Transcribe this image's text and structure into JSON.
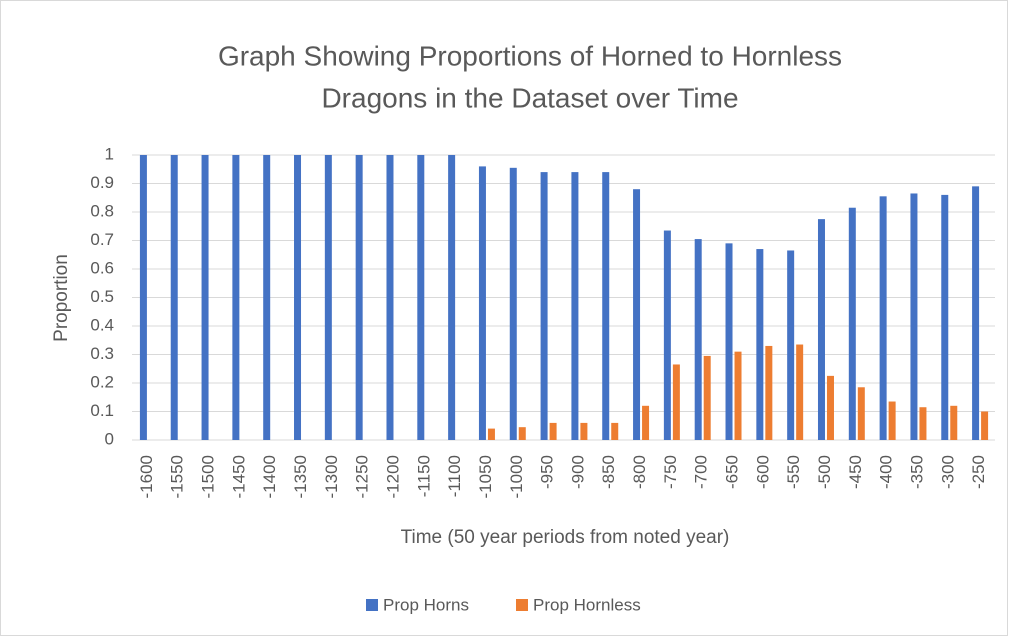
{
  "chart_data": {
    "type": "bar",
    "title": [
      "Graph Showing Proportions of Horned to Hornless",
      "Dragons in the Dataset over Time"
    ],
    "x_label": "Time (50 year periods from noted year)",
    "y_label": "Proportion",
    "categories": [
      "-1600",
      "-1550",
      "-1500",
      "-1450",
      "-1400",
      "-1350",
      "-1300",
      "-1250",
      "-1200",
      "-1150",
      "-1100",
      "-1050",
      "-1000",
      "-950",
      "-900",
      "-850",
      "-800",
      "-750",
      "-700",
      "-650",
      "-600",
      "-550",
      "-500",
      "-450",
      "-400",
      "-350",
      "-300",
      "-250"
    ],
    "series": [
      {
        "name": "Prop Horns",
        "color": "#4472c4",
        "values": [
          1,
          1,
          1,
          1,
          1,
          1,
          1,
          1,
          1,
          1,
          1,
          0.96,
          0.955,
          0.94,
          0.94,
          0.94,
          0.88,
          0.735,
          0.705,
          0.69,
          0.67,
          0.665,
          0.775,
          0.815,
          0.855,
          0.865,
          0.86,
          0.89
        ]
      },
      {
        "name": "Prop Hornless",
        "color": "#ed7d31",
        "values": [
          0,
          0,
          0,
          0,
          0,
          0,
          0,
          0,
          0,
          0,
          0,
          0.04,
          0.045,
          0.06,
          0.06,
          0.06,
          0.12,
          0.265,
          0.295,
          0.31,
          0.33,
          0.335,
          0.225,
          0.185,
          0.135,
          0.115,
          0.12,
          0.1
        ]
      }
    ],
    "ylim": [
      0,
      1
    ],
    "yticks": [
      0,
      0.1,
      0.2,
      0.3,
      0.4,
      0.5,
      0.6,
      0.7,
      0.8,
      0.9,
      1
    ],
    "grid": true,
    "legend": "bottom"
  }
}
